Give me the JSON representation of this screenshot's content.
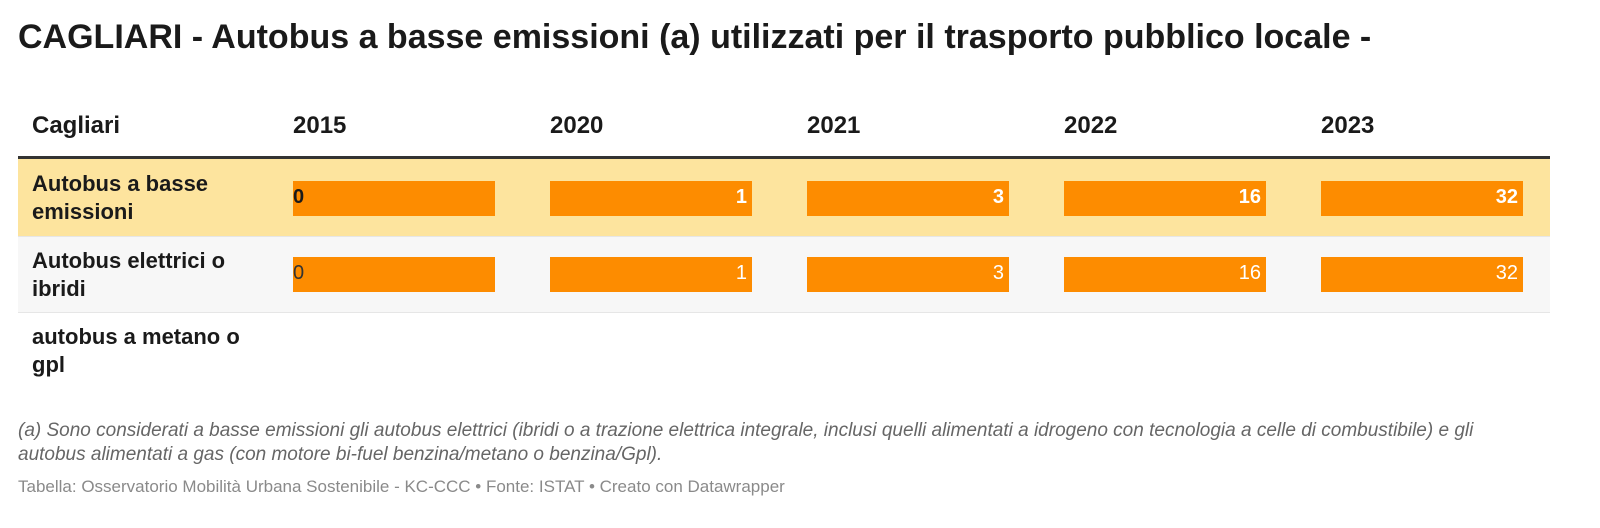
{
  "title": "CAGLIARI - Autobus a basse emissioni (a) utilizzati per il trasporto pubblico locale -",
  "colors": {
    "bar": "#fd8c00",
    "highlight_row": "#fde49e",
    "alt_row": "#f7f7f7"
  },
  "chart_data": {
    "type": "table",
    "row_header": "Cagliari",
    "columns": [
      "2015",
      "2020",
      "2021",
      "2022",
      "2023"
    ],
    "max_value": 32,
    "rows": [
      {
        "label": "Autobus a basse emissioni",
        "values": [
          0,
          1,
          3,
          16,
          32
        ],
        "value_labels": [
          "0",
          "1",
          "3",
          "16",
          "32"
        ],
        "highlight": true
      },
      {
        "label": "Autobus elettrici o ibridi",
        "values": [
          0,
          1,
          3,
          16,
          32
        ],
        "value_labels": [
          "0",
          "1",
          "3",
          "16",
          "32"
        ],
        "highlight": false
      },
      {
        "label": "autobus a metano o gpl",
        "values": [],
        "value_labels": [],
        "highlight": false
      }
    ]
  },
  "footnote": "(a) Sono considerati a basse emissioni gli autobus elettrici (ibridi o a trazione elettrica integrale, inclusi quelli alimentati a idrogeno con tecnologia a celle di combustibile) e gli autobus alimentati a gas (con motore bi-fuel benzina/metano o benzina/Gpl).",
  "source": "Tabella: Osservatorio Mobilità Urbana Sostenibile - KC-CCC • Fonte: ISTAT • Creato con Datawrapper"
}
